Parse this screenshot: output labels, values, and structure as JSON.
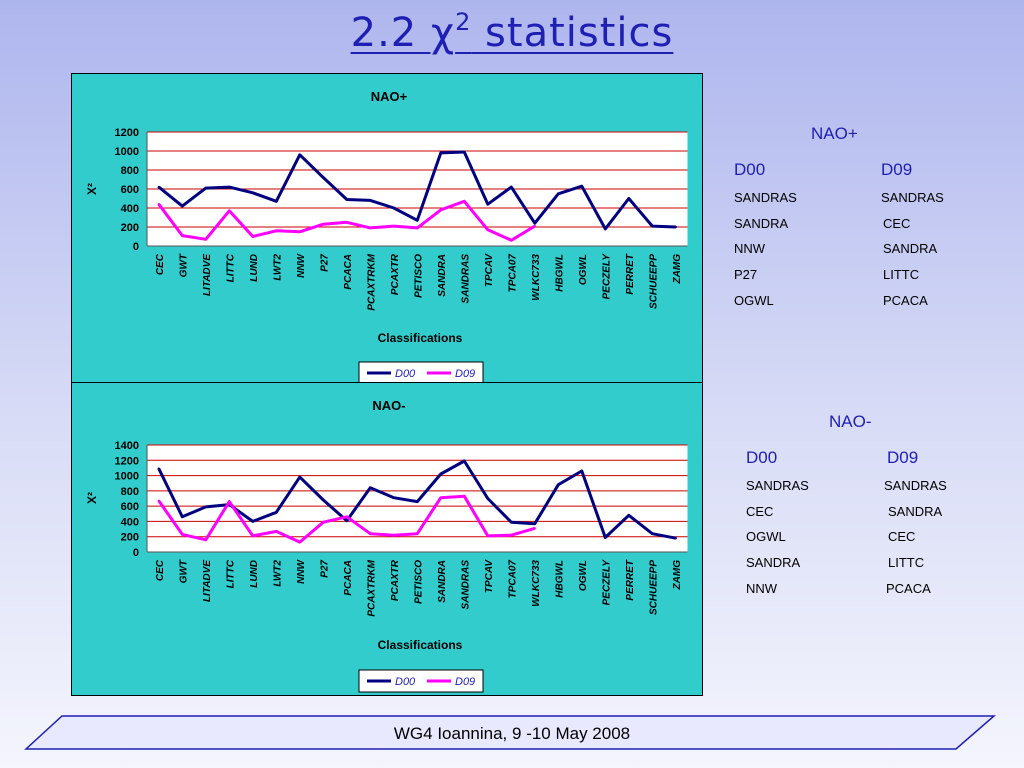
{
  "slide": {
    "title_prefix": "2.2  χ",
    "title_sup": "2",
    "title_suffix": " statistics",
    "footer": "WG4 Ioannina, 9 -10 May 2008"
  },
  "colors": {
    "d00": "#000080",
    "d09": "#ff00ff",
    "panel": "#33cccc",
    "gridline": "#cc0000",
    "title_blue": "#1f1fb4"
  },
  "chart_data": [
    {
      "type": "line",
      "title": "NAO+",
      "xlabel": "Classifications",
      "ylabel": "X²",
      "ylim": [
        0,
        1200
      ],
      "yticks": [
        0,
        200,
        400,
        600,
        800,
        1000,
        1200
      ],
      "categories": [
        "CEC",
        "GWT",
        "LITADVE",
        "LITTC",
        "LUND",
        "LWT2",
        "NNW",
        "P27",
        "PCACA",
        "PCAXTRKM",
        "PCAXTR",
        "PETISCO",
        "SANDRA",
        "SANDRAS",
        "TPCAV",
        "TPCA07",
        "WLKC733",
        "HBGWL",
        "OGWL",
        "PECZELY",
        "PERRET",
        "SCHUEEPP",
        "ZAMG"
      ],
      "series": [
        {
          "name": "D00",
          "values": [
            620,
            420,
            610,
            620,
            560,
            470,
            960,
            720,
            490,
            480,
            400,
            270,
            980,
            990,
            440,
            620,
            240,
            550,
            630,
            180,
            500,
            210,
            200
          ]
        },
        {
          "name": "D09",
          "values": [
            440,
            110,
            70,
            370,
            100,
            160,
            150,
            230,
            250,
            190,
            210,
            190,
            380,
            470,
            170,
            60,
            210,
            null,
            null,
            null,
            null,
            null,
            null
          ]
        }
      ],
      "legend": "bottom",
      "grid": true
    },
    {
      "type": "line",
      "title": "NAO-",
      "xlabel": "Classifications",
      "ylabel": "X²",
      "ylim": [
        0,
        1400
      ],
      "yticks": [
        0,
        200,
        400,
        600,
        800,
        1000,
        1200,
        1400
      ],
      "categories": [
        "CEC",
        "GWT",
        "LITADVE",
        "LITTC",
        "LUND",
        "LWT2",
        "NNW",
        "P27",
        "PCACA",
        "PCAXTRKM",
        "PCAXTR",
        "PETISCO",
        "SANDRA",
        "SANDRAS",
        "TPCAV",
        "TPCA07",
        "WLKC733",
        "HBGWL",
        "OGWL",
        "PECZELY",
        "PERRET",
        "SCHUEEPP",
        "ZAMG"
      ],
      "series": [
        {
          "name": "D00",
          "values": [
            1090,
            460,
            590,
            620,
            400,
            520,
            980,
            680,
            410,
            840,
            710,
            660,
            1020,
            1190,
            700,
            390,
            370,
            880,
            1060,
            190,
            480,
            240,
            180
          ]
        },
        {
          "name": "D09",
          "values": [
            670,
            230,
            160,
            660,
            210,
            270,
            130,
            390,
            460,
            240,
            220,
            240,
            710,
            730,
            210,
            220,
            310,
            null,
            null,
            null,
            null,
            null,
            null
          ]
        }
      ],
      "legend": "bottom",
      "grid": true
    }
  ],
  "side_top": {
    "heading": "NAO+",
    "col1_head": "D00",
    "col2_head": "D09",
    "col1": [
      "SANDRAS",
      "SANDRA",
      "NNW",
      "P27",
      "OGWL"
    ],
    "col2": [
      "SANDRAS",
      "CEC",
      "SANDRA",
      "LITTC",
      "PCACA"
    ]
  },
  "side_bottom": {
    "heading": "NAO-",
    "col1_head": "D00",
    "col2_head": "D09",
    "col1": [
      "SANDRAS",
      "CEC",
      "OGWL",
      "SANDRA",
      "NNW"
    ],
    "col2": [
      "SANDRAS",
      "SANDRA",
      "CEC",
      "LITTC",
      "PCACA"
    ]
  }
}
